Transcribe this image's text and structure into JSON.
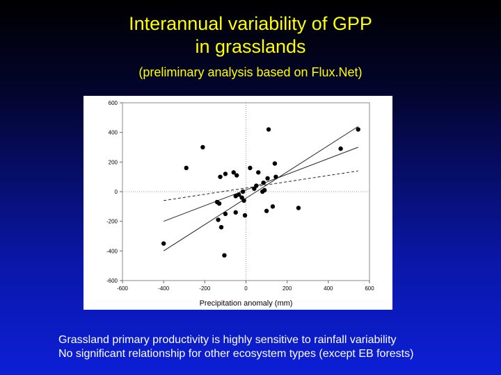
{
  "slide": {
    "title_line1": "Interannual variability of GPP",
    "title_line2": "in grasslands",
    "subtitle": "(preliminary analysis based on Flux.Net)",
    "caption_line1": "Grassland primary productivity is highly sensitive to rainfall variability",
    "caption_line2": "No significant relationship for other ecosystem types (except EB forests)"
  },
  "chart_data": {
    "type": "scatter",
    "title": "",
    "xlabel": "Precipitation anomaly (mm)",
    "ylabel": "",
    "xlim": [
      -600,
      600
    ],
    "ylim": [
      -600,
      600
    ],
    "xticks": [
      -600,
      -400,
      -200,
      0,
      200,
      400,
      600
    ],
    "yticks": [
      -600,
      -400,
      -200,
      0,
      200,
      400,
      600
    ],
    "grid": false,
    "reference_lines": [
      "x=0 dotted",
      "y=0 dotted"
    ],
    "points": [
      {
        "x": -400,
        "y": -350
      },
      {
        "x": -290,
        "y": 160
      },
      {
        "x": -210,
        "y": 300
      },
      {
        "x": -140,
        "y": -70
      },
      {
        "x": -135,
        "y": -190
      },
      {
        "x": -130,
        "y": -80
      },
      {
        "x": -125,
        "y": 100
      },
      {
        "x": -120,
        "y": -240
      },
      {
        "x": -105,
        "y": -430
      },
      {
        "x": -100,
        "y": 120
      },
      {
        "x": -100,
        "y": -150
      },
      {
        "x": -60,
        "y": 130
      },
      {
        "x": -50,
        "y": -30
      },
      {
        "x": -50,
        "y": -140
      },
      {
        "x": -45,
        "y": 110
      },
      {
        "x": -35,
        "y": -20
      },
      {
        "x": -20,
        "y": -40
      },
      {
        "x": -15,
        "y": 0
      },
      {
        "x": -10,
        "y": -60
      },
      {
        "x": -5,
        "y": -160
      },
      {
        "x": 20,
        "y": 160
      },
      {
        "x": 40,
        "y": 20
      },
      {
        "x": 50,
        "y": 40
      },
      {
        "x": 60,
        "y": 130
      },
      {
        "x": 80,
        "y": 0
      },
      {
        "x": 85,
        "y": 60
      },
      {
        "x": 90,
        "y": 10
      },
      {
        "x": 100,
        "y": -130
      },
      {
        "x": 105,
        "y": 90
      },
      {
        "x": 110,
        "y": 420
      },
      {
        "x": 130,
        "y": -100
      },
      {
        "x": 140,
        "y": 190
      },
      {
        "x": 145,
        "y": 100
      },
      {
        "x": 255,
        "y": -110
      },
      {
        "x": 460,
        "y": 290
      },
      {
        "x": 545,
        "y": 420
      }
    ],
    "lines": [
      {
        "name": "",
        "style": "solid",
        "x1": -400,
        "y1": -200,
        "x2": 545,
        "y2": 300
      },
      {
        "name": "",
        "style": "solid",
        "x1": -400,
        "y1": -400,
        "x2": 545,
        "y2": 440
      },
      {
        "name": "",
        "style": "dashed",
        "x1": -400,
        "y1": -60,
        "x2": 545,
        "y2": 140
      }
    ]
  }
}
